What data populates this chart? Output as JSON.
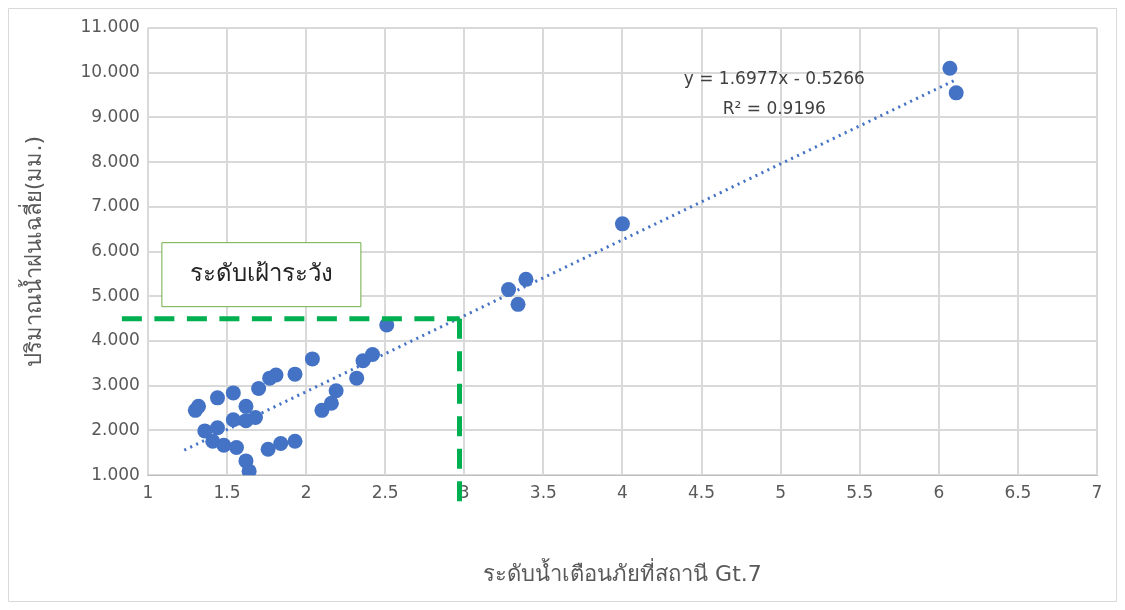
{
  "chart_data": {
    "type": "scatter",
    "xlabel": "ระดับน้ำเตือนภัยที่สถานี Gt.7",
    "ylabel": "ปริมาณน้ำฝนเฉลี่ย(มม.)",
    "xlim": [
      1,
      7
    ],
    "xticks": [
      1,
      1.5,
      2,
      2.5,
      3,
      3.5,
      4,
      4.5,
      5,
      5.5,
      6,
      6.5,
      7
    ],
    "ylim": [
      1,
      11
    ],
    "yticks": [
      {
        "value": 1,
        "label": "1.000"
      },
      {
        "value": 2,
        "label": "2.000"
      },
      {
        "value": 3,
        "label": "3.000"
      },
      {
        "value": 4,
        "label": "4.000"
      },
      {
        "value": 5,
        "label": "5.000"
      },
      {
        "value": 6,
        "label": "6.000"
      },
      {
        "value": 7,
        "label": "7.000"
      },
      {
        "value": 8,
        "label": "8.000"
      },
      {
        "value": 9,
        "label": "9.000"
      },
      {
        "value": 10,
        "label": "10.000"
      },
      {
        "value": 11,
        "label": "11.000"
      }
    ],
    "grid": true,
    "legend": false,
    "marker": "circle",
    "series": [
      {
        "type": "scatter",
        "color": "#4472c4",
        "x": [
          1.3,
          1.32,
          1.36,
          1.44,
          1.41,
          1.44,
          1.48,
          1.54,
          1.54,
          1.56,
          1.62,
          1.62,
          1.62,
          1.64,
          1.68,
          1.7,
          1.76,
          1.77,
          1.81,
          1.84,
          1.93,
          1.93,
          2.04,
          2.1,
          2.16,
          2.19,
          2.32,
          2.36,
          2.42,
          2.51,
          3.28,
          3.34,
          3.39,
          4.0,
          6.07,
          6.11
        ],
        "values": [
          2.45,
          2.54,
          1.99,
          2.73,
          1.76,
          2.06,
          1.67,
          2.84,
          2.24,
          1.62,
          2.22,
          2.54,
          1.32,
          1.09,
          2.29,
          2.94,
          1.58,
          3.17,
          3.24,
          1.71,
          1.76,
          3.26,
          3.6,
          2.45,
          2.61,
          2.89,
          3.17,
          3.56,
          3.7,
          4.36,
          5.15,
          4.82,
          5.38,
          6.62,
          10.1,
          9.55
        ]
      },
      {
        "type": "line",
        "color": "#4472c4",
        "line_style": "dotted",
        "marker": "none",
        "x": [
          1.23,
          6.1
        ],
        "values": [
          1.56,
          9.83
        ]
      }
    ],
    "ref_lines": [
      {
        "axis": "y",
        "value": 4.5,
        "label": "ระดับเฝ้าระวัง",
        "color": "#00b050",
        "line_style": "dashed"
      },
      {
        "axis": "x",
        "value": 2.97,
        "color": "#00b050",
        "line_style": "dashed"
      }
    ],
    "annotations": [
      "y = 1.6977x - 0.5266",
      "R² = 0.9196"
    ]
  }
}
